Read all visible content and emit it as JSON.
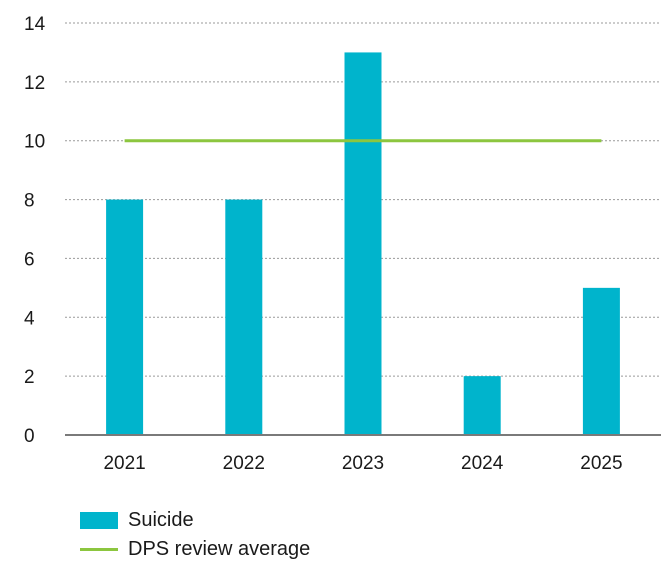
{
  "chart_data": {
    "type": "bar",
    "categories": [
      "2021",
      "2022",
      "2023",
      "2024",
      "2025"
    ],
    "series": [
      {
        "name": "Suicide",
        "kind": "bar",
        "values": [
          8,
          8,
          13,
          2,
          5
        ],
        "color": "#00b4cc"
      },
      {
        "name": "DPS review average",
        "kind": "line",
        "values": [
          10,
          10,
          10,
          10,
          10
        ],
        "color": "#8cc63f"
      }
    ],
    "ylim": [
      0,
      14
    ],
    "yticks": [
      "0",
      "2",
      "4",
      "6",
      "8",
      "10",
      "12",
      "14"
    ],
    "grid": true,
    "legend": "bottom-left"
  }
}
